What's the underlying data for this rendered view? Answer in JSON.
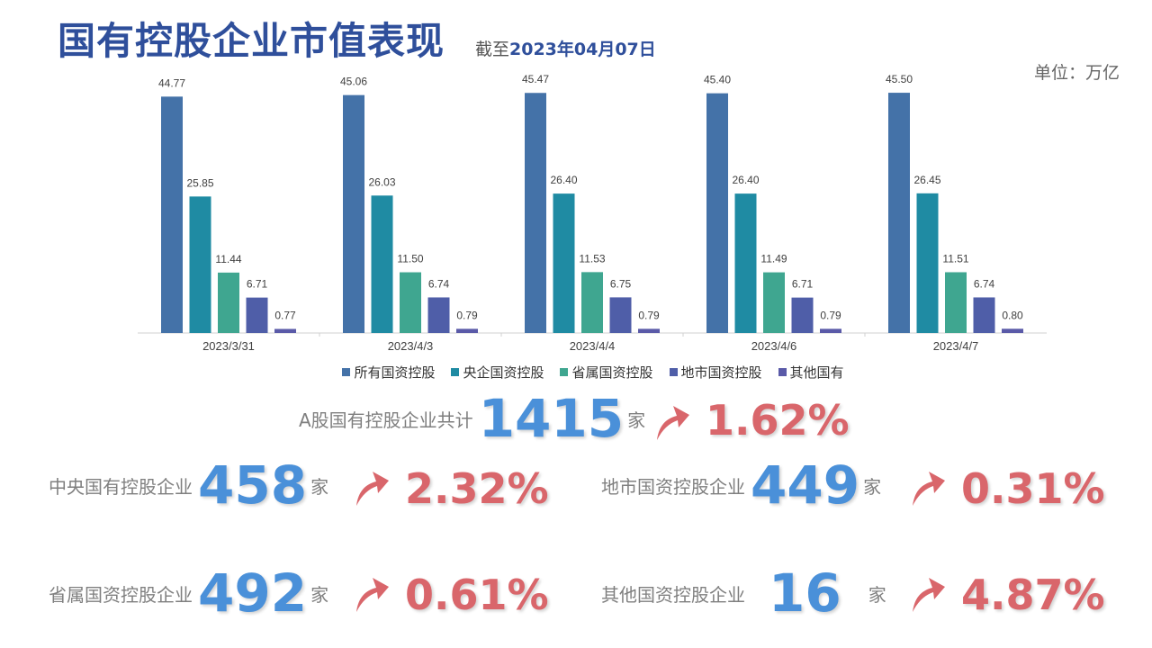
{
  "header": {
    "title": "国有控股企业市值表现",
    "date_prefix": "截至",
    "date_value": "2023年04月07日",
    "unit": "单位：万亿"
  },
  "chart_data": {
    "type": "bar",
    "categories": [
      "2023/3/31",
      "2023/4/3",
      "2023/4/4",
      "2023/4/6",
      "2023/4/7"
    ],
    "series": [
      {
        "name": "所有国资控股",
        "color": "#4472a8",
        "values": [
          44.77,
          45.06,
          45.47,
          45.4,
          45.5
        ]
      },
      {
        "name": "央企国资控股",
        "color": "#1f8ba3",
        "values": [
          25.85,
          26.03,
          26.4,
          26.4,
          26.45
        ]
      },
      {
        "name": "省属国资控股",
        "color": "#3fa690",
        "values": [
          11.44,
          11.5,
          11.53,
          11.49,
          11.51
        ]
      },
      {
        "name": "地市国资控股",
        "color": "#4f5ea8",
        "values": [
          6.71,
          6.74,
          6.75,
          6.71,
          6.74
        ]
      },
      {
        "name": "其他国有",
        "color": "#5a5aa8",
        "values": [
          0.77,
          0.79,
          0.79,
          0.79,
          0.8
        ]
      }
    ],
    "ylim": [
      0,
      50
    ],
    "legend": "bottom"
  },
  "stats": {
    "total": {
      "label": "A股国有控股企业共计",
      "count": "1415",
      "unit": "家",
      "change": "1.62%"
    },
    "central": {
      "label": "中央国有控股企业",
      "count": "458",
      "unit": "家",
      "change": "2.32%"
    },
    "municipal": {
      "label": "地市国资控股企业",
      "count": "449",
      "unit": "家",
      "change": "0.31%"
    },
    "provincial": {
      "label": "省属国资控股企业",
      "count": "492",
      "unit": "家",
      "change": "0.61%"
    },
    "other": {
      "label": "其他国资控股企业",
      "count": "16",
      "unit": "家",
      "change": "4.87%"
    }
  },
  "colors": {
    "accent_blue": "#4a90d9",
    "accent_red": "#d9666b",
    "title_blue": "#2f4f9b"
  }
}
